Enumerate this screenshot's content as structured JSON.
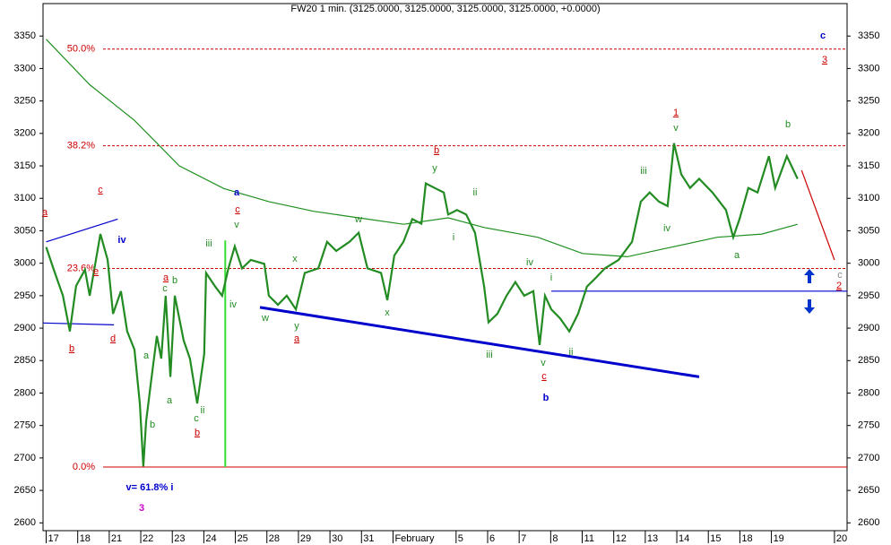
{
  "chart_data": {
    "type": "line",
    "title": "FW20 1 min. (3125.0000, 3125.0000, 3125.0000, 3125.0000, +0.0000)",
    "xlim": [
      -0.1,
      25.4
    ],
    "ylim": [
      2588,
      3400
    ],
    "yticks": [
      2600,
      2650,
      2700,
      2750,
      2800,
      2850,
      2900,
      2950,
      3000,
      3050,
      3100,
      3150,
      3200,
      3250,
      3300,
      3350
    ],
    "xticks": [
      {
        "value": 0,
        "label": "17"
      },
      {
        "value": 1,
        "label": "18"
      },
      {
        "value": 2,
        "label": "21"
      },
      {
        "value": 3,
        "label": "22"
      },
      {
        "value": 4,
        "label": "23"
      },
      {
        "value": 5,
        "label": "24"
      },
      {
        "value": 6,
        "label": "25"
      },
      {
        "value": 7,
        "label": "28"
      },
      {
        "value": 8,
        "label": "29"
      },
      {
        "value": 9,
        "label": "30"
      },
      {
        "value": 10,
        "label": "31"
      },
      {
        "value": 11,
        "label": "February"
      },
      {
        "value": 13,
        "label": "5"
      },
      {
        "value": 14,
        "label": "6"
      },
      {
        "value": 15,
        "label": "7"
      },
      {
        "value": 16,
        "label": "8"
      },
      {
        "value": 17,
        "label": "11"
      },
      {
        "value": 18,
        "label": "12"
      },
      {
        "value": 19,
        "label": "13"
      },
      {
        "value": 20,
        "label": "14"
      },
      {
        "value": 21,
        "label": "15"
      },
      {
        "value": 22,
        "label": "18"
      },
      {
        "value": 23,
        "label": "19"
      },
      {
        "value": 25,
        "label": "20"
      }
    ],
    "series": [
      {
        "color": "#228b22",
        "x": [
          0,
          0.24,
          0.53,
          0.75,
          0.95,
          1.23,
          1.38,
          1.72,
          1.95,
          2.12,
          2.37,
          2.57,
          2.8,
          2.97,
          3.08,
          3.17,
          3.31,
          3.51,
          3.65,
          3.79,
          3.94,
          4.08,
          4.36,
          4.56,
          4.79,
          5.01,
          5.07,
          5.36,
          5.58,
          5.78,
          5.98,
          6.21,
          6.49,
          6.92,
          7.06,
          7.35,
          7.63,
          7.92,
          8.2,
          8.63,
          8.91,
          9.2,
          9.62,
          9.91,
          10.19,
          10.62,
          10.82,
          11.04,
          11.33,
          11.61,
          11.9,
          12.04,
          12.32,
          12.61,
          12.75,
          13.03,
          13.32,
          13.6,
          13.89,
          14.03,
          14.31,
          14.6,
          14.88,
          15.16,
          15.45,
          15.65,
          15.82,
          16.02,
          16.3,
          16.59,
          16.87,
          17.15,
          17.44,
          17.72,
          18.15,
          18.58,
          18.86,
          19.14,
          19.43,
          19.71,
          19.91,
          20.14,
          20.42,
          20.71,
          21.13,
          21.56,
          21.79,
          21.99,
          22.27,
          22.56,
          22.92,
          23.12,
          23.49,
          23.83
        ],
        "values": [
          3025,
          2990,
          2950,
          2895,
          2965,
          2990,
          2950,
          3045,
          3005,
          2922,
          2957,
          2895,
          2867,
          2784,
          2687,
          2756,
          2812,
          2888,
          2853,
          2950,
          2825,
          2950,
          2881,
          2853,
          2784,
          2860,
          2985,
          2964,
          2950,
          2992,
          3026,
          2992,
          3005,
          2999,
          2950,
          2936,
          2950,
          2929,
          2985,
          2992,
          3033,
          3019,
          3033,
          3047,
          2992,
          2985,
          2943,
          3012,
          3033,
          3068,
          3061,
          3123,
          3116,
          3109,
          3075,
          3082,
          3075,
          3047,
          2964,
          2909,
          2922,
          2950,
          2971,
          2950,
          2957,
          2874,
          2950,
          2929,
          2915,
          2895,
          2922,
          2964,
          2978,
          2992,
          3005,
          3033,
          3095,
          3109,
          3095,
          3088,
          3185,
          3137,
          3116,
          3130,
          3109,
          3082,
          3040,
          3068,
          3116,
          3109,
          3165,
          3116,
          3165,
          3130
        ]
      },
      {
        "color": "#1f8f1f",
        "x": [
          0,
          1.38,
          2.8,
          4.22,
          5.64,
          7.06,
          8.48,
          9.91,
          11.33,
          12.75,
          13.89,
          15.59,
          17.01,
          18.43,
          19.85,
          21.28,
          22.7,
          23.83
        ],
        "values": [
          3345,
          3275,
          3220,
          3150,
          3115,
          3095,
          3080,
          3070,
          3060,
          3070,
          3055,
          3040,
          3015,
          3010,
          3025,
          3040,
          3045,
          3060
        ]
      }
    ],
    "levels": [
      {
        "label": "50.0%",
        "value": 3330
      },
      {
        "label": "38.2%",
        "value": 3181
      },
      {
        "label": "23.6%",
        "value": 2992
      },
      {
        "label": "0.0%",
        "value": 2686
      }
    ],
    "level_color": "#cc0000",
    "trendlines": [
      {
        "color": "#0000cc",
        "x": [
          6.78,
          20.71
        ],
        "values": [
          2932,
          2825
        ]
      },
      {
        "color": "#0000cc",
        "x": [
          0,
          2.27
        ],
        "values": [
          3033,
          3068
        ]
      },
      {
        "color": "#0000cc",
        "x": [
          -0.1,
          2.15
        ],
        "values": [
          2908,
          2905
        ]
      },
      {
        "color": "#0000cc",
        "x": [
          16.02,
          25.4
        ],
        "values": [
          2957,
          2957
        ]
      },
      {
        "color": "#cc0000",
        "x": [
          23.96,
          25.0
        ],
        "values": [
          3143,
          3005
        ]
      },
      {
        "color": "#33dd33",
        "x": [
          5.68,
          5.68
        ],
        "values": [
          3035,
          2686
        ]
      }
    ],
    "annotations": [
      {
        "text": "a",
        "color": "#cc0000"
      },
      {
        "text": "c",
        "color": "#cc0000"
      },
      {
        "text": "e",
        "color": "#cc0000"
      },
      {
        "text": "d",
        "color": "#cc0000"
      },
      {
        "text": "b",
        "color": "#cc0000"
      },
      {
        "text": "a",
        "color": "#cc0000"
      },
      {
        "text": "b",
        "color": "#cc0000"
      },
      {
        "text": "c",
        "color": "#cc0000"
      },
      {
        "text": "b",
        "color": "#cc0000"
      },
      {
        "text": "a",
        "color": "#cc0000"
      },
      {
        "text": "c",
        "color": "#cc0000"
      },
      {
        "text": "1",
        "color": "#cc0000"
      },
      {
        "text": "3",
        "color": "#cc0000"
      },
      {
        "text": "2",
        "color": "#cc0000"
      },
      {
        "text": "c",
        "color": "#228b22"
      },
      {
        "text": "b",
        "color": "#228b22"
      },
      {
        "text": "a",
        "color": "#228b22"
      },
      {
        "text": "a",
        "color": "#228b22"
      },
      {
        "text": "b",
        "color": "#228b22"
      },
      {
        "text": "c",
        "color": "#228b22"
      },
      {
        "text": "ii",
        "color": "#228b22"
      },
      {
        "text": "iii",
        "color": "#228b22"
      },
      {
        "text": "v",
        "color": "#228b22"
      },
      {
        "text": "iv",
        "color": "#228b22"
      },
      {
        "text": "x",
        "color": "#228b22"
      },
      {
        "text": "y",
        "color": "#228b22"
      },
      {
        "text": "w",
        "color": "#228b22"
      },
      {
        "text": "w",
        "color": "#228b22"
      },
      {
        "text": "x",
        "color": "#228b22"
      },
      {
        "text": "y",
        "color": "#228b22"
      },
      {
        "text": "ii",
        "color": "#228b22"
      },
      {
        "text": "i",
        "color": "#228b22"
      },
      {
        "text": "iii",
        "color": "#228b22"
      },
      {
        "text": "iv",
        "color": "#228b22"
      },
      {
        "text": "i",
        "color": "#228b22"
      },
      {
        "text": "v",
        "color": "#228b22"
      },
      {
        "text": "ii",
        "color": "#228b22"
      },
      {
        "text": "iii",
        "color": "#228b22"
      },
      {
        "text": "iv",
        "color": "#228b22"
      },
      {
        "text": "v",
        "color": "#228b22"
      },
      {
        "text": "a",
        "color": "#228b22"
      },
      {
        "text": "b",
        "color": "#228b22"
      },
      {
        "text": "c",
        "color": "#888888"
      },
      {
        "text": "a",
        "color": "#0000cc"
      },
      {
        "text": "iv",
        "color": "#0000cc"
      },
      {
        "text": "b",
        "color": "#0000cc"
      },
      {
        "text": "c",
        "color": "#0000cc"
      },
      {
        "text": "v= 61.8% i",
        "color": "#0000cc"
      },
      {
        "text": "3",
        "color": "#cc00cc"
      }
    ]
  }
}
